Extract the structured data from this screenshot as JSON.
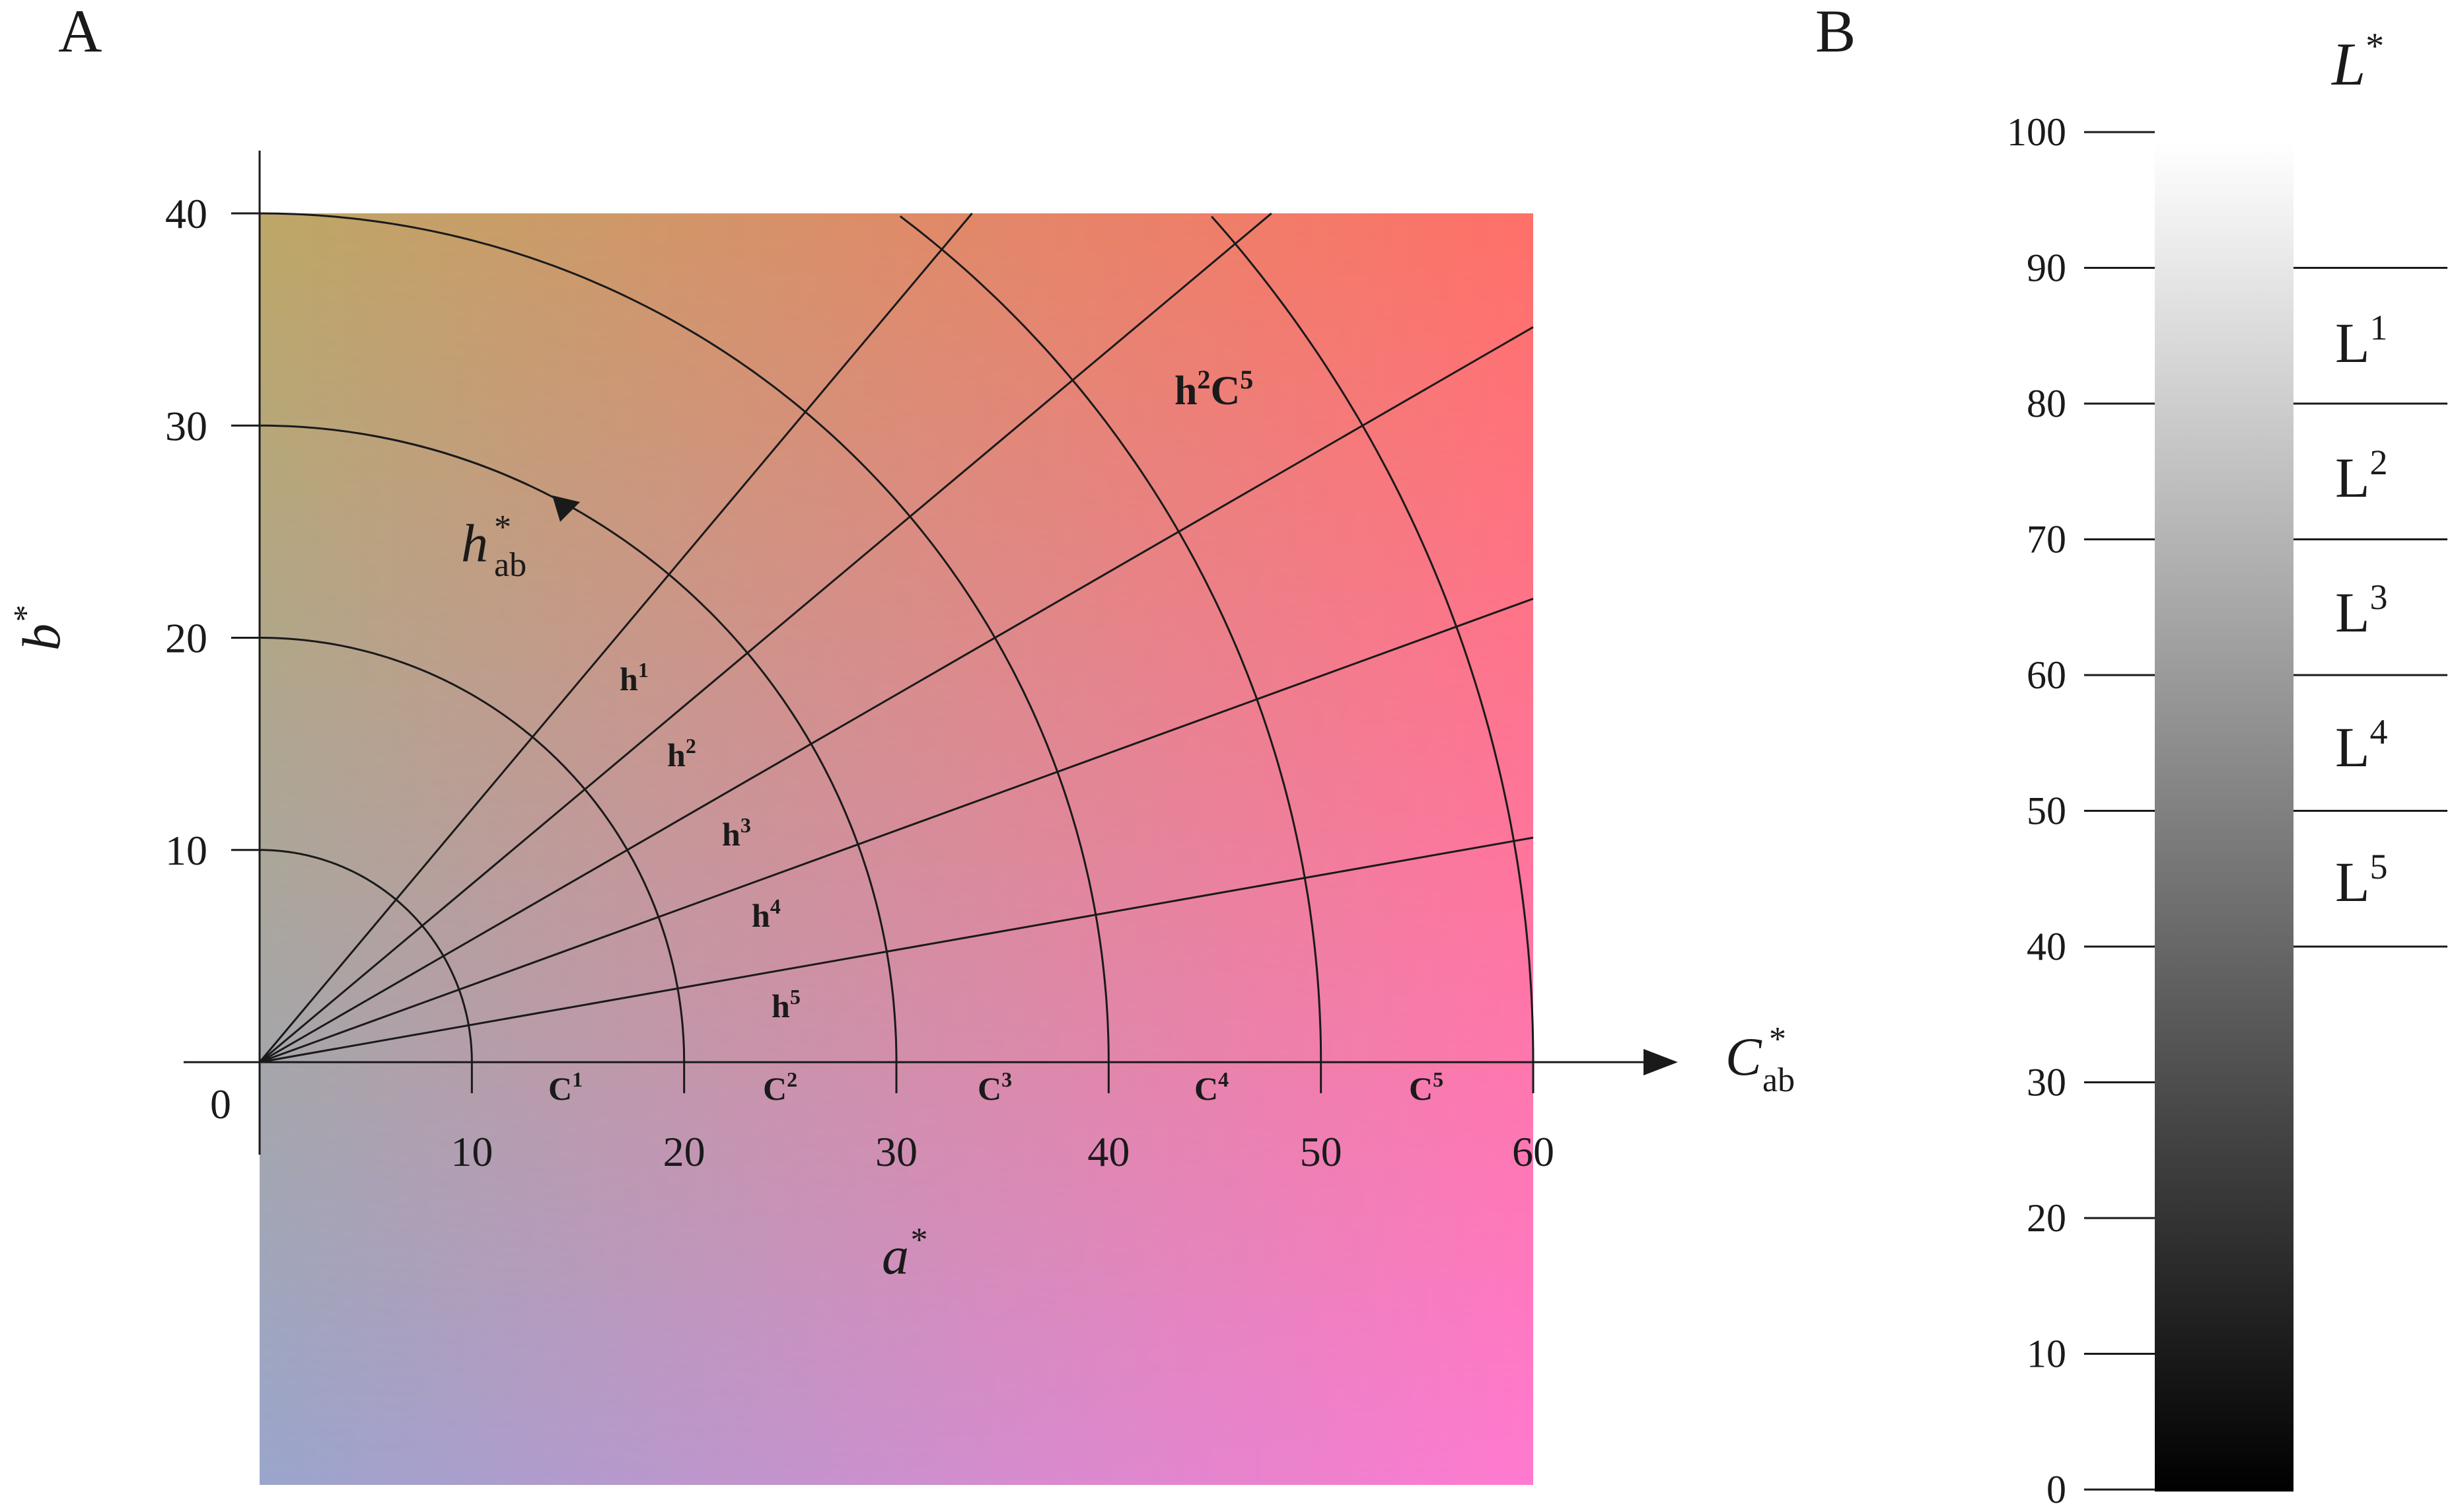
{
  "panel_a": {
    "panel_label": "A",
    "x_axis": {
      "label": "a",
      "label_sup": "*",
      "ticks": [
        10,
        20,
        30,
        40,
        50,
        60
      ],
      "range": [
        0,
        60
      ]
    },
    "y_axis": {
      "label": "b",
      "label_sup": "*",
      "ticks": [
        10,
        20,
        30,
        40
      ],
      "range": [
        0,
        40
      ]
    },
    "origin_label": "0",
    "chroma_axis": {
      "label": "C",
      "sup": "*",
      "sub": "ab"
    },
    "hue_label": {
      "label": "h",
      "sup": "*",
      "sub": "ab"
    },
    "chroma_radii": [
      10,
      20,
      30,
      40,
      50,
      60
    ],
    "hue_angles_deg": [
      10,
      20,
      30,
      40,
      50
    ],
    "chroma_classes": [
      {
        "base": "C",
        "sup": "1"
      },
      {
        "base": "C",
        "sup": "2"
      },
      {
        "base": "C",
        "sup": "3"
      },
      {
        "base": "C",
        "sup": "4"
      },
      {
        "base": "C",
        "sup": "5"
      }
    ],
    "hue_classes": [
      {
        "base": "h",
        "sup": "1"
      },
      {
        "base": "h",
        "sup": "2"
      },
      {
        "base": "h",
        "sup": "3"
      },
      {
        "base": "h",
        "sup": "4"
      },
      {
        "base": "h",
        "sup": "5"
      }
    ],
    "example_cell": {
      "h": "h",
      "h_sup": "2",
      "c": "C",
      "c_sup": "5"
    },
    "background_colors": {
      "top_left": "#bca767",
      "top_right": "#ff7068",
      "bottom_left": "#9aa6cc",
      "bottom_right": "#ff7ad0"
    }
  },
  "panel_b": {
    "panel_label": "B",
    "axis": {
      "label": "L",
      "sup": "*"
    },
    "ticks": [
      0,
      10,
      20,
      30,
      40,
      50,
      60,
      70,
      80,
      90,
      100
    ],
    "lightness_classes": [
      {
        "base": "L",
        "sup": "1",
        "from": 80,
        "to": 90
      },
      {
        "base": "L",
        "sup": "2",
        "from": 70,
        "to": 80
      },
      {
        "base": "L",
        "sup": "3",
        "from": 60,
        "to": 70
      },
      {
        "base": "L",
        "sup": "4",
        "from": 50,
        "to": 60
      },
      {
        "base": "L",
        "sup": "5",
        "from": 40,
        "to": 50
      }
    ],
    "gradient_colors": {
      "top": "#ffffff",
      "bottom": "#000000"
    }
  }
}
